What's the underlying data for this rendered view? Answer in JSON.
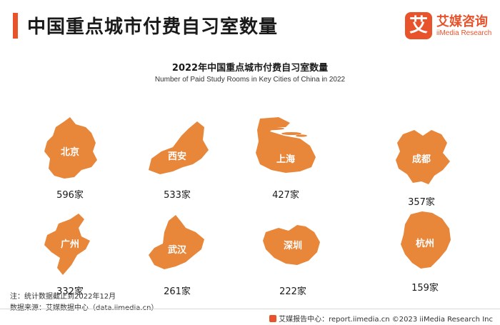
{
  "header": {
    "title": "中国重点城市付费自习室数量"
  },
  "logo": {
    "mark": "艾",
    "name": "艾媒咨询",
    "sub": "iiMedia Research"
  },
  "chart_data": {
    "type": "bar",
    "title": "2022年中国重点城市付费自习室数量",
    "subtitle": "Number of Paid Study Rooms in Key Cities of China in 2022",
    "categories": [
      "北京",
      "西安",
      "上海",
      "成都",
      "广州",
      "武汉",
      "深圳",
      "杭州"
    ],
    "values": [
      596,
      533,
      427,
      357,
      332,
      261,
      222,
      159
    ],
    "value_labels": [
      "596家",
      "533家",
      "427家",
      "357家",
      "332家",
      "261家",
      "222家",
      "159家"
    ],
    "color": "#e8863a"
  },
  "notes": {
    "note": "注：统计数据截止到2022年12月",
    "source": "数据来源：艾媒数据中心（data.iimedia.cn）"
  },
  "footer": {
    "text": "艾媒报告中心：report.iimedia.cn   ©2023  iiMedia Research  Inc"
  }
}
